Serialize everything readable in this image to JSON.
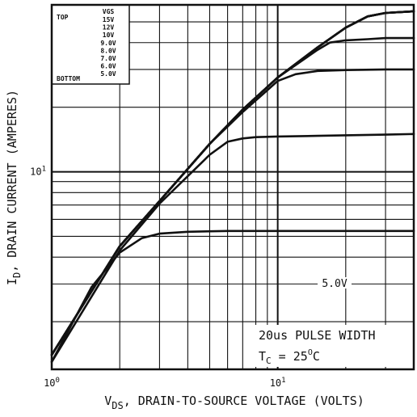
{
  "chart_data": {
    "type": "line",
    "title": "",
    "x_scale": "log",
    "y_scale": "log",
    "xlim": [
      1,
      40
    ],
    "ylim": [
      1.2,
      60
    ],
    "grid": true,
    "xlabel": {
      "main": "V",
      "sub": "DS",
      "rest": ", DRAIN-TO-SOURCE VOLTAGE (VOLTS)"
    },
    "ylabel": {
      "main": "I",
      "sub": "D",
      "rest": ", DRAIN CURRENT (AMPERES)"
    },
    "x_ticks": [
      {
        "value": 1,
        "base": "10",
        "exp": "0"
      },
      {
        "value": 10,
        "base": "10",
        "exp": "1"
      }
    ],
    "y_ticks": [
      {
        "value": 10,
        "base": "10",
        "exp": "1"
      }
    ],
    "legend": {
      "placement": "top-left",
      "header": "VGS",
      "top_label": "TOP",
      "bottom_label": "BOTTOM",
      "entries": [
        "15V",
        "12V",
        "10V",
        "9.0V",
        "8.0V",
        "7.0V",
        "6.0V",
        "5.0V"
      ]
    },
    "annotations": {
      "curve_label": "5.0V",
      "pulse": "20us PULSE WIDTH",
      "temp": {
        "main": "T",
        "sub": "C",
        "rest": " = 25",
        "sup": "O",
        "unit": "C"
      }
    },
    "series": [
      {
        "name": "15V",
        "x": [
          1,
          2,
          3,
          5,
          7,
          10,
          15,
          20,
          25,
          30,
          40
        ],
        "y": [
          1.4,
          4.5,
          7.3,
          13.5,
          19.5,
          27.5,
          38,
          47,
          53,
          55,
          56
        ]
      },
      {
        "name": "12V",
        "x": [
          1,
          2,
          3,
          5,
          7,
          10,
          15,
          20,
          25,
          30,
          40
        ],
        "y": [
          1.4,
          4.5,
          7.3,
          13.5,
          19.5,
          27.5,
          38,
          47,
          53,
          55,
          56
        ]
      },
      {
        "name": "10V",
        "x": [
          1,
          2,
          3,
          5,
          7,
          10,
          15,
          20,
          25,
          30,
          40
        ],
        "y": [
          1.4,
          4.5,
          7.3,
          13.5,
          19.5,
          27.5,
          38,
          47,
          53,
          55,
          56
        ]
      },
      {
        "name": "9.0V",
        "x": [
          1,
          2,
          3,
          5,
          7,
          10,
          15,
          20,
          25,
          30,
          40
        ],
        "y": [
          1.4,
          4.5,
          7.3,
          13.5,
          19.5,
          27.5,
          38,
          47,
          53,
          55,
          56
        ]
      },
      {
        "name": "8.0V",
        "x": [
          1,
          2,
          3,
          5,
          7,
          10,
          15,
          17,
          20,
          25,
          30,
          40
        ],
        "y": [
          1.4,
          4.5,
          7.3,
          13.5,
          19.5,
          27.5,
          37,
          40,
          41,
          41.5,
          42,
          42
        ]
      },
      {
        "name": "7.0V",
        "x": [
          1,
          2,
          3,
          5,
          7,
          9,
          10,
          12,
          15,
          20,
          30,
          40
        ],
        "y": [
          1.4,
          4.5,
          7.3,
          13.5,
          19,
          24,
          26.5,
          28.5,
          29.5,
          29.8,
          30,
          30
        ]
      },
      {
        "name": "6.0V",
        "x": [
          1,
          2,
          3,
          5,
          6,
          7,
          8,
          10,
          15,
          20,
          30,
          40
        ],
        "y": [
          1.3,
          4.3,
          7.1,
          12,
          13.8,
          14.3,
          14.5,
          14.6,
          14.7,
          14.8,
          14.9,
          15
        ]
      },
      {
        "name": "5.0V",
        "x": [
          1,
          1.5,
          2,
          2.5,
          3,
          4,
          6,
          10,
          20,
          40
        ],
        "y": [
          1.3,
          2.9,
          4.2,
          4.9,
          5.15,
          5.25,
          5.3,
          5.3,
          5.3,
          5.3
        ]
      }
    ],
    "colors": {
      "ink": "#111111",
      "background": "#ffffff"
    }
  }
}
